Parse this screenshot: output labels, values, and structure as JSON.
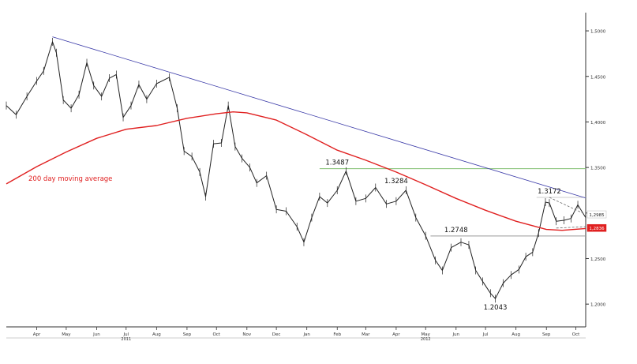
{
  "chart_data": {
    "type": "line",
    "x_start": "2011-03-15",
    "x_end": "2012-10-25",
    "ylim": [
      1.175,
      1.52
    ],
    "y_ticks": [
      {
        "value": 1.5,
        "label": "1,5000"
      },
      {
        "value": 1.45,
        "label": "1,4500"
      },
      {
        "value": 1.4,
        "label": "1,4000"
      },
      {
        "value": 1.35,
        "label": "1,3500"
      },
      {
        "value": 1.3,
        "label": "1,3000"
      },
      {
        "value": 1.25,
        "label": "1,2500"
      },
      {
        "value": 1.2,
        "label": "1,2000"
      }
    ],
    "x_ticks": [
      {
        "date": "2011-04-15",
        "label": "Apr"
      },
      {
        "date": "2011-05-15",
        "label": "May"
      },
      {
        "date": "2011-06-15",
        "label": "Jun"
      },
      {
        "date": "2011-07-15",
        "label": "Jul"
      },
      {
        "date": "2011-08-15",
        "label": "Aug"
      },
      {
        "date": "2011-09-15",
        "label": "Sep"
      },
      {
        "date": "2011-10-15",
        "label": "Oct"
      },
      {
        "date": "2011-11-15",
        "label": "Nov"
      },
      {
        "date": "2011-12-15",
        "label": "Dec"
      },
      {
        "date": "2012-01-15",
        "label": "Jan"
      },
      {
        "date": "2012-02-15",
        "label": "Feb"
      },
      {
        "date": "2012-03-15",
        "label": "Mar"
      },
      {
        "date": "2012-04-15",
        "label": "Apr"
      },
      {
        "date": "2012-05-15",
        "label": "May"
      },
      {
        "date": "2012-06-15",
        "label": "Jun"
      },
      {
        "date": "2012-07-15",
        "label": "Jul"
      },
      {
        "date": "2012-08-15",
        "label": "Aug"
      },
      {
        "date": "2012-09-15",
        "label": "Sep"
      },
      {
        "date": "2012-10-15",
        "label": "Oct"
      }
    ],
    "year_labels": [
      {
        "date": "2011-07-15",
        "label": "2011"
      },
      {
        "date": "2012-05-15",
        "label": "2012"
      }
    ],
    "series": [
      {
        "color": "#222222",
        "points": [
          [
            "2011-03-15",
            1.418
          ],
          [
            "2011-03-25",
            1.408
          ],
          [
            "2011-04-05",
            1.428
          ],
          [
            "2011-04-15",
            1.445
          ],
          [
            "2011-04-22",
            1.456
          ],
          [
            "2011-05-01",
            1.488
          ],
          [
            "2011-05-05",
            1.476
          ],
          [
            "2011-05-12",
            1.424
          ],
          [
            "2011-05-20",
            1.415
          ],
          [
            "2011-05-28",
            1.43
          ],
          [
            "2011-06-05",
            1.465
          ],
          [
            "2011-06-12",
            1.44
          ],
          [
            "2011-06-20",
            1.428
          ],
          [
            "2011-06-28",
            1.448
          ],
          [
            "2011-07-05",
            1.452
          ],
          [
            "2011-07-12",
            1.405
          ],
          [
            "2011-07-20",
            1.418
          ],
          [
            "2011-07-28",
            1.441
          ],
          [
            "2011-08-05",
            1.425
          ],
          [
            "2011-08-15",
            1.442
          ],
          [
            "2011-08-28",
            1.449
          ],
          [
            "2011-09-05",
            1.415
          ],
          [
            "2011-09-12",
            1.368
          ],
          [
            "2011-09-20",
            1.362
          ],
          [
            "2011-09-28",
            1.345
          ],
          [
            "2011-10-04",
            1.318
          ],
          [
            "2011-10-12",
            1.376
          ],
          [
            "2011-10-20",
            1.377
          ],
          [
            "2011-10-27",
            1.418
          ],
          [
            "2011-11-03",
            1.373
          ],
          [
            "2011-11-10",
            1.36
          ],
          [
            "2011-11-18",
            1.35
          ],
          [
            "2011-11-25",
            1.333
          ],
          [
            "2011-12-05",
            1.341
          ],
          [
            "2011-12-15",
            1.304
          ],
          [
            "2011-12-25",
            1.302
          ],
          [
            "2012-01-05",
            1.285
          ],
          [
            "2012-01-12",
            1.268
          ],
          [
            "2012-01-20",
            1.295
          ],
          [
            "2012-01-28",
            1.318
          ],
          [
            "2012-02-05",
            1.311
          ],
          [
            "2012-02-15",
            1.325
          ],
          [
            "2012-02-24",
            1.346
          ],
          [
            "2012-03-05",
            1.313
          ],
          [
            "2012-03-15",
            1.316
          ],
          [
            "2012-03-25",
            1.328
          ],
          [
            "2012-04-05",
            1.31
          ],
          [
            "2012-04-15",
            1.313
          ],
          [
            "2012-04-25",
            1.325
          ],
          [
            "2012-05-05",
            1.295
          ],
          [
            "2012-05-15",
            1.275
          ],
          [
            "2012-05-25",
            1.248
          ],
          [
            "2012-06-01",
            1.237
          ],
          [
            "2012-06-10",
            1.262
          ],
          [
            "2012-06-20",
            1.268
          ],
          [
            "2012-06-28",
            1.265
          ],
          [
            "2012-07-05",
            1.237
          ],
          [
            "2012-07-12",
            1.225
          ],
          [
            "2012-07-20",
            1.212
          ],
          [
            "2012-07-25",
            1.206
          ],
          [
            "2012-08-02",
            1.223
          ],
          [
            "2012-08-10",
            1.232
          ],
          [
            "2012-08-18",
            1.238
          ],
          [
            "2012-08-25",
            1.252
          ],
          [
            "2012-09-01",
            1.257
          ],
          [
            "2012-09-07",
            1.278
          ],
          [
            "2012-09-14",
            1.312
          ],
          [
            "2012-09-18",
            1.311
          ],
          [
            "2012-09-25",
            1.291
          ],
          [
            "2012-10-03",
            1.292
          ],
          [
            "2012-10-10",
            1.294
          ],
          [
            "2012-10-17",
            1.309
          ],
          [
            "2012-10-25",
            1.295
          ]
        ]
      },
      {
        "name": "200 day moving average",
        "color": "#e02020",
        "points": [
          [
            "2011-03-15",
            1.332
          ],
          [
            "2011-04-15",
            1.351
          ],
          [
            "2011-05-15",
            1.367
          ],
          [
            "2011-06-15",
            1.382
          ],
          [
            "2011-07-15",
            1.392
          ],
          [
            "2011-08-15",
            1.396
          ],
          [
            "2011-09-15",
            1.404
          ],
          [
            "2011-10-15",
            1.409
          ],
          [
            "2011-11-01",
            1.411
          ],
          [
            "2011-11-15",
            1.41
          ],
          [
            "2011-12-15",
            1.402
          ],
          [
            "2012-01-15",
            1.386
          ],
          [
            "2012-02-15",
            1.369
          ],
          [
            "2012-03-15",
            1.358
          ],
          [
            "2012-04-15",
            1.345
          ],
          [
            "2012-05-15",
            1.331
          ],
          [
            "2012-06-15",
            1.316
          ],
          [
            "2012-07-15",
            1.303
          ],
          [
            "2012-08-15",
            1.291
          ],
          [
            "2012-09-15",
            1.282
          ],
          [
            "2012-10-01",
            1.281
          ],
          [
            "2012-10-25",
            1.283
          ]
        ]
      }
    ],
    "ma_label": "200 day moving average",
    "trendline": {
      "color": "#3a3aa8",
      "from": [
        "2011-05-01",
        1.4935
      ],
      "to": [
        "2012-10-25",
        1.3165
      ]
    },
    "h_lines": [
      {
        "value": 1.3487,
        "from": "2012-01-28",
        "to": "2012-10-25",
        "color": "#7fbf6f"
      },
      {
        "value": 1.2748,
        "from": "2012-05-20",
        "to": "2012-10-25",
        "color": "#999999"
      },
      {
        "value": 1.3172,
        "from": "2012-09-05",
        "to": "2012-10-25",
        "color": "#cccccc"
      }
    ],
    "dashed_lines": [
      {
        "from": [
          "2012-09-18",
          1.3172
        ],
        "to": [
          "2012-10-25",
          1.2985
        ]
      },
      {
        "from": [
          "2012-09-25",
          1.2835
        ],
        "to": [
          "2012-10-25",
          1.285
        ]
      }
    ],
    "annotations": [
      {
        "label": "1.3487",
        "date": "2012-02-15",
        "value": 1.3487,
        "pos": "above"
      },
      {
        "label": "1.3284",
        "date": "2012-04-15",
        "value": 1.3284,
        "pos": "above"
      },
      {
        "label": "1.2748",
        "date": "2012-06-15",
        "value": 1.2748,
        "pos": "above"
      },
      {
        "label": "1.3172",
        "date": "2012-09-18",
        "value": 1.3172,
        "pos": "above"
      },
      {
        "label": "1.2043",
        "date": "2012-07-25",
        "value": 1.2043,
        "pos": "below"
      }
    ],
    "last_price_labels": [
      {
        "label": "1,2985",
        "value": 1.2985,
        "bg": "#ffffff",
        "fg": "#222222"
      },
      {
        "label": "1,2836",
        "value": 1.2836,
        "bg": "#e02020",
        "fg": "#ffffff"
      }
    ]
  }
}
